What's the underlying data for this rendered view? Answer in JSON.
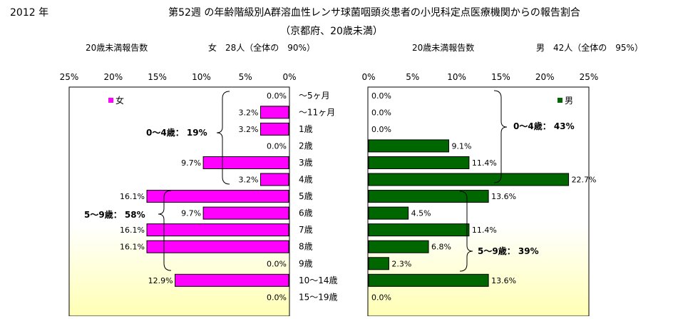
{
  "header": {
    "year": "2012 年",
    "title_line1": "第52週 の年齢階級別A群溶血性レンサ球菌咽頭炎患者の小児科定点医療機関からの報告割合",
    "title_line2": "（京都府、20歳未満）"
  },
  "female_panel": {
    "count_label": "20歳未満報告数",
    "total_label": "女　28人（全体の　90%）",
    "legend": "女",
    "group1_annotation": "0～4歳： 19%",
    "group2_annotation": "5～9歳： 58%"
  },
  "male_panel": {
    "count_label": "20歳未満報告数",
    "total_label": "男　42人（全体の　95%）",
    "legend": "男",
    "group1_annotation": "0～4歳： 43%",
    "group2_annotation": "5～9歳： 39%"
  },
  "colors": {
    "female_bar": "#ff00ff",
    "male_bar": "#006600",
    "plot_gradient_light": "#ffffff",
    "plot_gradient_yellow": "#ffffb4"
  },
  "chart_data": [
    {
      "type": "bar",
      "orientation": "horizontal",
      "direction": "right-to-left",
      "categories": [
        "～5ヶ月",
        "～11ヶ月",
        "1歳",
        "2歳",
        "3歳",
        "4歳",
        "5歳",
        "6歳",
        "7歳",
        "8歳",
        "9歳",
        "10～14歳",
        "15～19歳"
      ],
      "series": [
        {
          "name": "女",
          "values": [
            0.0,
            3.2,
            3.2,
            0.0,
            9.7,
            3.2,
            16.1,
            9.7,
            16.1,
            16.1,
            0.0,
            12.9,
            0.0
          ],
          "labels": [
            "0.0%",
            "3.2%",
            "3.2%",
            "0.0%",
            "9.7%",
            "3.2%",
            "16.1%",
            "9.7%",
            "16.1%",
            "16.1%",
            "0.0%",
            "12.9%",
            "0.0%"
          ]
        }
      ],
      "xlim": [
        0,
        25
      ],
      "ticks": [
        "25%",
        "20%",
        "15%",
        "10%",
        "5%",
        "0%"
      ],
      "legend_position": "top-left"
    },
    {
      "type": "bar",
      "orientation": "horizontal",
      "direction": "left-to-right",
      "categories": [
        "～5ヶ月",
        "～11ヶ月",
        "1歳",
        "2歳",
        "3歳",
        "4歳",
        "5歳",
        "6歳",
        "7歳",
        "8歳",
        "9歳",
        "10～14歳",
        "15～19歳"
      ],
      "series": [
        {
          "name": "男",
          "values": [
            0.0,
            0.0,
            0.0,
            9.1,
            11.4,
            22.7,
            13.6,
            4.5,
            11.4,
            6.8,
            2.3,
            13.6,
            0.0
          ],
          "labels": [
            "0.0%",
            "0.0%",
            "0.0%",
            "9.1%",
            "11.4%",
            "22.7%",
            "13.6%",
            "4.5%",
            "11.4%",
            "6.8%",
            "2.3%",
            "13.6%",
            "0.0%"
          ]
        }
      ],
      "xlim": [
        0,
        25
      ],
      "ticks": [
        "0%",
        "5%",
        "10%",
        "15%",
        "20%",
        "25%"
      ],
      "legend_position": "top-right"
    }
  ]
}
